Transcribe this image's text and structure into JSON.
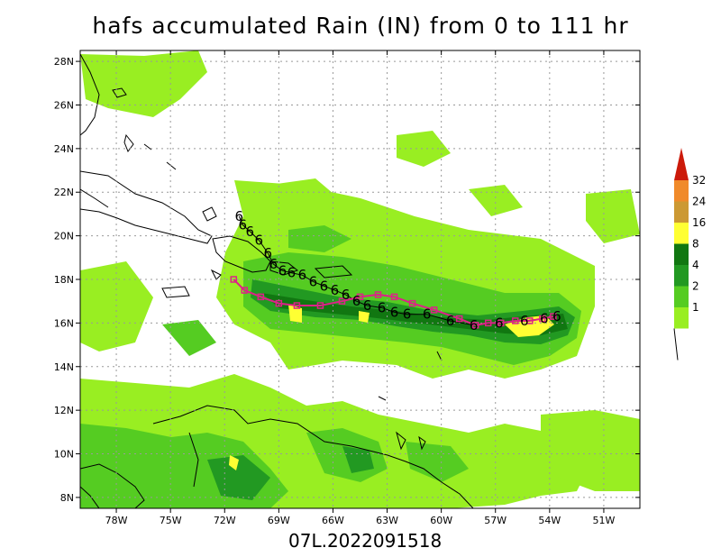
{
  "title": "hafs accumulated Rain (IN) from 0 to 111 hr",
  "footer_label": "07L.2022091518",
  "map": {
    "lon_range": [
      -80,
      -49
    ],
    "lat_range": [
      7.5,
      28.5
    ],
    "lon_ticks": [
      {
        "value": -78,
        "label": "78W"
      },
      {
        "value": -75,
        "label": "75W"
      },
      {
        "value": -72,
        "label": "72W"
      },
      {
        "value": -69,
        "label": "69W"
      },
      {
        "value": -66,
        "label": "66W"
      },
      {
        "value": -63,
        "label": "63W"
      },
      {
        "value": -60,
        "label": "60W"
      },
      {
        "value": -57,
        "label": "57W"
      },
      {
        "value": -54,
        "label": "54W"
      },
      {
        "value": -51,
        "label": "51W"
      }
    ],
    "lat_ticks": [
      {
        "value": 8,
        "label": "8N"
      },
      {
        "value": 10,
        "label": "10N"
      },
      {
        "value": 12,
        "label": "12N"
      },
      {
        "value": 14,
        "label": "14N"
      },
      {
        "value": 16,
        "label": "16N"
      },
      {
        "value": 18,
        "label": "18N"
      },
      {
        "value": 20,
        "label": "20N"
      },
      {
        "value": 22,
        "label": "22N"
      },
      {
        "value": 24,
        "label": "24N"
      },
      {
        "value": 26,
        "label": "26N"
      },
      {
        "value": 28,
        "label": "28N"
      }
    ]
  },
  "colorbar": {
    "levels": [
      "1",
      "2",
      "4",
      "8",
      "16",
      "24",
      "32"
    ],
    "colors": [
      "#99ee22",
      "#55cc22",
      "#229922",
      "#117711",
      "#ffff33",
      "#cc9933",
      "#f08a2a",
      "#cc1a0a"
    ]
  },
  "track": {
    "forecast_symbol": "6",
    "forecast_points": [
      [
        -53.6,
        16.3
      ],
      [
        -54.3,
        16.2
      ],
      [
        -55.4,
        16.1
      ],
      [
        -56.8,
        16.0
      ],
      [
        -58.2,
        15.9
      ],
      [
        -59.5,
        16.1
      ],
      [
        -60.8,
        16.4
      ],
      [
        -61.9,
        16.4
      ],
      [
        -62.6,
        16.5
      ],
      [
        -63.3,
        16.7
      ],
      [
        -64.1,
        16.8
      ],
      [
        -64.7,
        17.0
      ],
      [
        -65.3,
        17.3
      ],
      [
        -65.9,
        17.5
      ],
      [
        -66.5,
        17.7
      ],
      [
        -67.1,
        17.9
      ],
      [
        -67.7,
        18.2
      ],
      [
        -68.3,
        18.3
      ],
      [
        -68.8,
        18.4
      ],
      [
        -69.3,
        18.7
      ],
      [
        -69.6,
        19.2
      ],
      [
        -70.1,
        19.8
      ],
      [
        -70.6,
        20.2
      ],
      [
        -71.0,
        20.5
      ],
      [
        -71.2,
        20.9
      ]
    ],
    "observed_points": [
      [
        -53.8,
        16.3
      ],
      [
        -54.4,
        16.2
      ],
      [
        -55.1,
        16.1
      ],
      [
        -55.9,
        16.1
      ],
      [
        -56.7,
        16.0
      ],
      [
        -57.4,
        16.0
      ],
      [
        -58.1,
        15.9
      ],
      [
        -59.0,
        16.2
      ],
      [
        -60.4,
        16.6
      ],
      [
        -61.6,
        16.9
      ],
      [
        -62.6,
        17.2
      ],
      [
        -63.5,
        17.3
      ],
      [
        -64.5,
        17.2
      ],
      [
        -65.5,
        17.0
      ],
      [
        -66.7,
        16.8
      ],
      [
        -68.0,
        16.8
      ],
      [
        -69.0,
        16.9
      ],
      [
        -70.0,
        17.2
      ],
      [
        -70.9,
        17.5
      ],
      [
        -71.5,
        18.0
      ]
    ]
  }
}
